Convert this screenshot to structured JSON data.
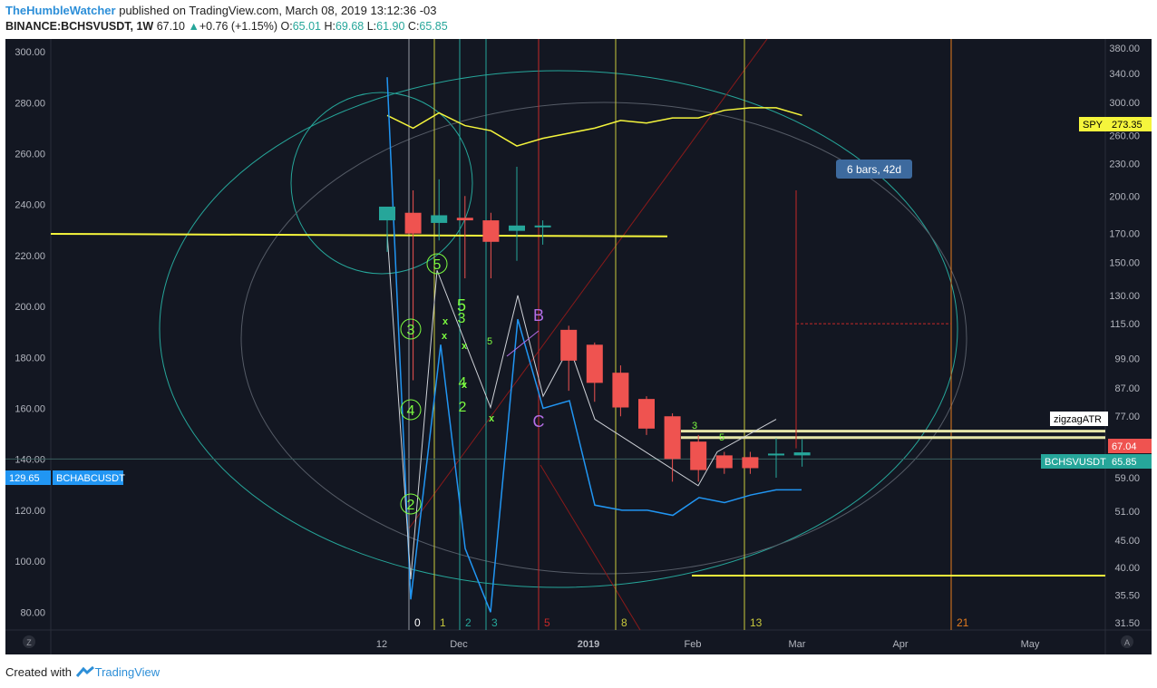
{
  "header": {
    "author": "TheHumbleWatcher",
    "published": "published on TradingView.com, March 08, 2019 13:12:36 -03",
    "symbol": "BINANCE:BCHSVUSDT, 1W",
    "last": "67.10",
    "change": "+0.76 (+1.15%)",
    "o_label": "O:",
    "o": "65.01",
    "h_label": "H:",
    "h": "69.68",
    "l_label": "L:",
    "l": "61.90",
    "c_label": "C:",
    "c": "65.85"
  },
  "footer": {
    "created_with": "Created with",
    "brand": "TradingView"
  },
  "colors": {
    "background": "#131722",
    "bull": "#26a69a",
    "bear": "#ef5350",
    "yellow": "#f5f53c",
    "blue": "#2196f3",
    "green": "#7cfc40",
    "purple": "#b46ee6",
    "red": "#c62828"
  },
  "chart_data": {
    "type": "candlestick",
    "timeframe": "1W",
    "left_axis": {
      "ticks": [
        80,
        100,
        120,
        140,
        160,
        180,
        200,
        220,
        240,
        260,
        280,
        300
      ],
      "range": [
        73,
        305
      ]
    },
    "right_axis": {
      "scale": "log",
      "ticks": [
        31.5,
        35.5,
        40,
        45,
        51,
        59,
        67,
        77,
        87,
        99,
        115,
        130,
        150,
        170,
        200,
        230,
        260,
        300,
        340,
        380
      ],
      "range": [
        30.5,
        395
      ]
    },
    "x_axis": {
      "labels": [
        "12",
        "Dec",
        "2019",
        "Feb",
        "Mar",
        "Apr",
        "May"
      ]
    },
    "candles": [
      {
        "o": 180,
        "h": 190,
        "l": 157,
        "c": 191
      },
      {
        "o": 186,
        "h": 205,
        "l": 90,
        "c": 170
      },
      {
        "o": 178,
        "h": 215,
        "l": 165,
        "c": 184
      },
      {
        "o": 182,
        "h": 200,
        "l": 140,
        "c": 180
      },
      {
        "o": 180,
        "h": 186,
        "l": 140,
        "c": 164
      },
      {
        "o": 172,
        "h": 227,
        "l": 151,
        "c": 176
      },
      {
        "o": 175,
        "h": 180,
        "l": 162,
        "c": 176
      },
      {
        "o": 112,
        "h": 114,
        "l": 86,
        "c": 98
      },
      {
        "o": 105,
        "h": 106,
        "l": 82,
        "c": 89
      },
      {
        "o": 93,
        "h": 96,
        "l": 77,
        "c": 80
      },
      {
        "o": 83,
        "h": 84,
        "l": 71,
        "c": 73
      },
      {
        "o": 77,
        "h": 78,
        "l": 58,
        "c": 64
      },
      {
        "o": 69,
        "h": 71,
        "l": 58,
        "c": 61
      },
      {
        "o": 65,
        "h": 66,
        "l": 60,
        "c": 61.5
      },
      {
        "o": 64.5,
        "h": 66,
        "l": 60,
        "c": 61.5
      },
      {
        "o": 65.3,
        "h": 70,
        "l": 59,
        "c": 65.5
      },
      {
        "o": 65.0,
        "h": 69.68,
        "l": 61.9,
        "c": 65.85
      }
    ],
    "series": [
      {
        "name": "SPY",
        "last": "273.35",
        "values": [
          275,
          270,
          276,
          271,
          269,
          263,
          266,
          268,
          270,
          273,
          272,
          274,
          274,
          277,
          278,
          278,
          275
        ]
      },
      {
        "name": "BCHABCUSDT",
        "last": "129.65"
      },
      {
        "name": "BCHSVUSDT",
        "last": "65.85"
      }
    ],
    "badges": {
      "spy": "SPY",
      "bchabc": "BCHABCUSDT",
      "bchabc_value": "129.65",
      "bchsv": "BCHSVUSDT",
      "bchsv_value": "65.85",
      "level": "67.04",
      "zigzag": "zigzagATR"
    },
    "range_label": "6 bars, 42d",
    "fib_time_labels": [
      "0",
      "1",
      "2",
      "3",
      "5",
      "8",
      "13",
      "21"
    ],
    "wave_labels": [
      "5",
      "3",
      "4",
      "2",
      "5",
      "3",
      "4",
      "2",
      "5",
      "3",
      "B",
      "C",
      "5"
    ],
    "corner_labels": {
      "left": "Z",
      "right": "A"
    }
  }
}
